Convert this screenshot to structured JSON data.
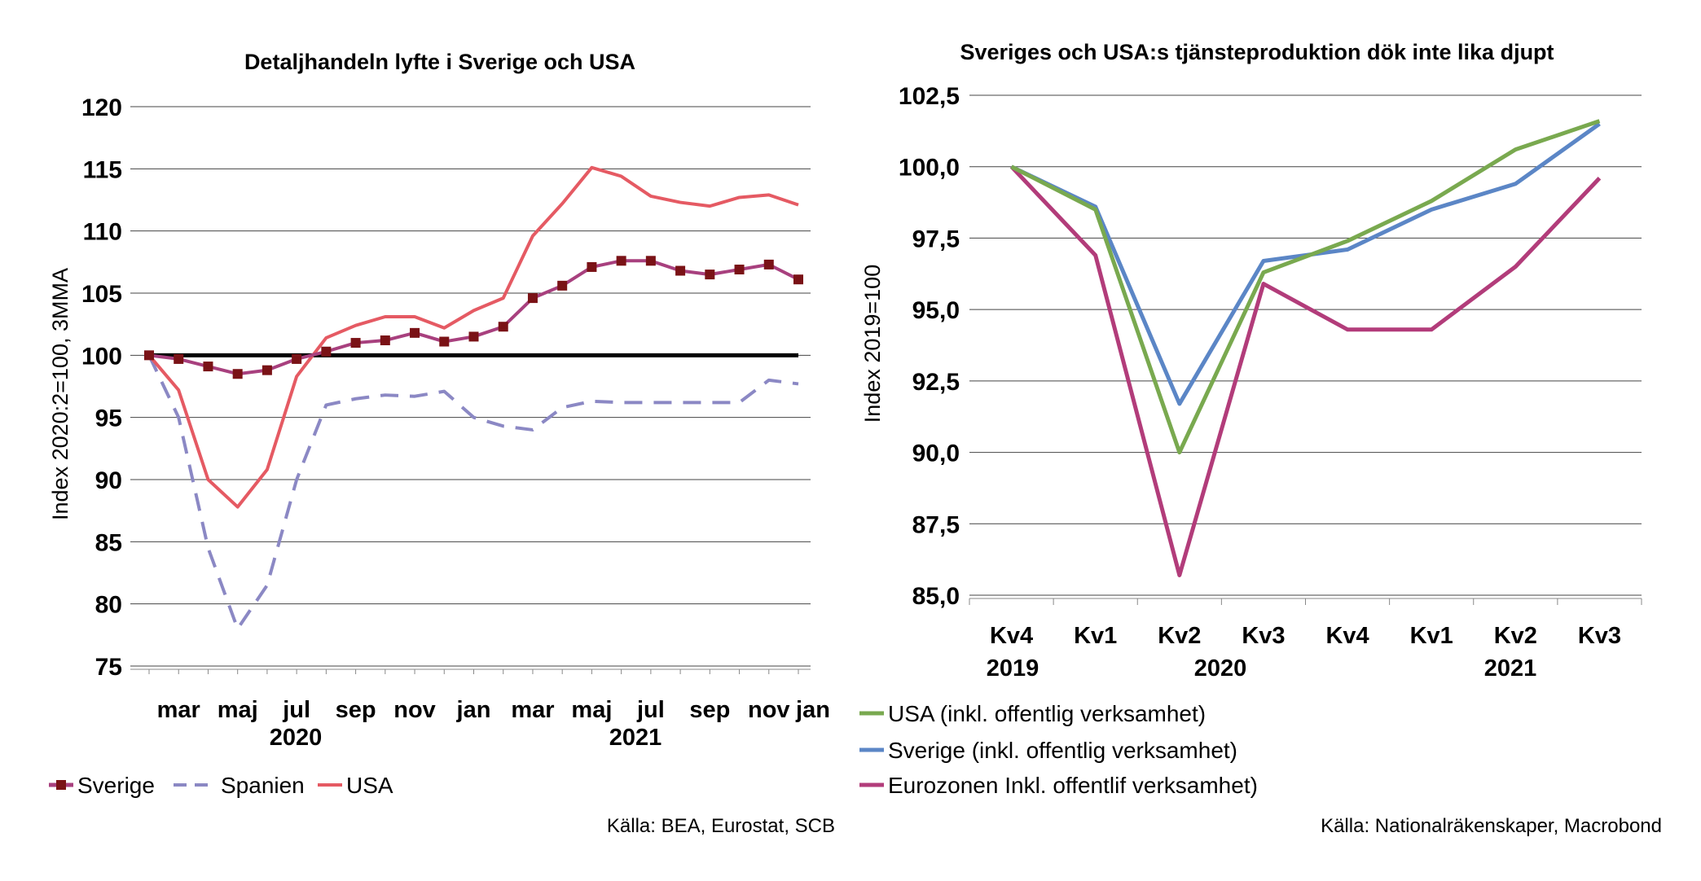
{
  "chart_data": [
    {
      "type": "line",
      "title": "Detaljhandeln lyfte i Sverige och USA",
      "ylabel": "Index 2020:2=100, 3MMA",
      "xlabel": "",
      "ylim": [
        75,
        120
      ],
      "yticks": [
        "120",
        "115",
        "110",
        "105",
        "100",
        "95",
        "90",
        "85",
        "80",
        "75"
      ],
      "x_tick_labels": [
        "mar",
        "maj",
        "jul",
        "sep",
        "nov",
        "jan",
        "mar",
        "maj",
        "jul",
        "sep",
        "nov",
        "jan"
      ],
      "x_year_labels": [
        "2020",
        "2021"
      ],
      "reference_line": 100,
      "categories": [
        "2020-02",
        "2020-03",
        "2020-04",
        "2020-05",
        "2020-06",
        "2020-07",
        "2020-08",
        "2020-09",
        "2020-10",
        "2020-11",
        "2020-12",
        "2021-01",
        "2021-02",
        "2021-03",
        "2021-04",
        "2021-05",
        "2021-06",
        "2021-07",
        "2021-08",
        "2021-09",
        "2021-10",
        "2021-11",
        "2021-12"
      ],
      "series": [
        {
          "name": "Sverige",
          "color": "#a8407e",
          "marker_color": "#7a1216",
          "style": "solid-marker",
          "values": [
            100,
            99.7,
            99.1,
            98.5,
            98.8,
            99.7,
            100.3,
            101.0,
            101.2,
            101.8,
            101.1,
            101.5,
            102.3,
            104.6,
            105.6,
            107.1,
            107.6,
            107.6,
            106.8,
            106.5,
            106.9,
            107.3,
            106.1
          ]
        },
        {
          "name": "Spanien",
          "color": "#8b88c4",
          "style": "dashed",
          "values": [
            100,
            95.0,
            84.5,
            78.0,
            81.5,
            90.0,
            96.0,
            96.5,
            96.8,
            96.7,
            97.1,
            95.0,
            94.3,
            94.0,
            95.8,
            96.3,
            96.2,
            96.2,
            96.2,
            96.2,
            96.2,
            98.0,
            97.7
          ]
        },
        {
          "name": "USA",
          "color": "#e55a63",
          "style": "solid",
          "values": [
            100,
            97.2,
            90.0,
            87.8,
            90.8,
            98.3,
            101.4,
            102.4,
            103.1,
            103.1,
            102.2,
            103.6,
            104.6,
            109.6,
            112.2,
            115.1,
            114.4,
            112.8,
            112.3,
            112.0,
            112.7,
            112.9,
            112.1
          ]
        }
      ],
      "source": "Källa: BEA, Eurostat, SCB"
    },
    {
      "type": "line",
      "title": "Sveriges och USA:s tjänsteproduktion dök inte lika djupt",
      "ylabel": "Index 2019=100",
      "xlabel": "",
      "ylim": [
        85,
        102.5
      ],
      "yticks": [
        "102,5",
        "100,0",
        "97,5",
        "95,0",
        "92,5",
        "90,0",
        "87,5",
        "85,0"
      ],
      "categories": [
        "Kv4",
        "Kv1",
        "Kv2",
        "Kv3",
        "Kv4",
        "Kv1",
        "Kv2",
        "Kv3"
      ],
      "x_year_labels": [
        "2019",
        "2020",
        "2021"
      ],
      "series": [
        {
          "name": "USA (inkl. offentlig verksamhet)",
          "color": "#79a94f",
          "values": [
            100.0,
            98.5,
            90.0,
            96.3,
            97.4,
            98.8,
            100.6,
            101.6
          ]
        },
        {
          "name": "Sverige (inkl. offentlig verksamhet)",
          "color": "#5b86c6",
          "values": [
            100.0,
            98.6,
            91.7,
            96.7,
            97.1,
            98.5,
            99.4,
            101.5
          ]
        },
        {
          "name": "Eurozonen Inkl. offentlif verksamhet)",
          "color": "#b23c7a",
          "values": [
            100.0,
            96.9,
            85.7,
            95.9,
            94.3,
            94.3,
            96.5,
            99.6
          ]
        }
      ],
      "source": "Källa: Nationalräkenskaper, Macrobond"
    }
  ]
}
